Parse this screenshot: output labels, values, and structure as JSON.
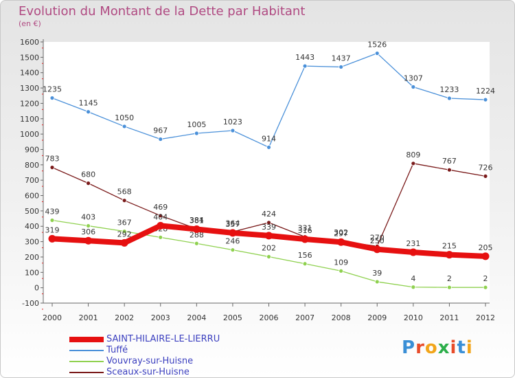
{
  "title": "Evolution du Montant de la Dette par Habitant",
  "subtitle": "(en €)",
  "logo_text": "Proxiti",
  "chart_data": {
    "type": "line",
    "title": "Evolution du Montant de la Dette par Habitant",
    "subtitle": "(en €)",
    "xlabel": "",
    "ylabel": "",
    "x": [
      2000,
      2001,
      2002,
      2003,
      2004,
      2005,
      2006,
      2007,
      2008,
      2009,
      2010,
      2011,
      2012
    ],
    "ylim": [
      -100,
      1600
    ],
    "ytick_step": 100,
    "grid": false,
    "legend_position": "bottom-left",
    "series": [
      {
        "name": "Tuffé",
        "color": "#4a90d9",
        "values": [
          1235,
          1145,
          1050,
          967,
          1005,
          1023,
          914,
          1443,
          1437,
          1526,
          1307,
          1233,
          1224
        ]
      },
      {
        "name": "Vouvray-sur-Huisne",
        "color": "#8fd14f",
        "values": [
          439,
          403,
          367,
          328,
          288,
          246,
          202,
          156,
          109,
          39,
          4,
          2,
          2
        ]
      },
      {
        "name": "Sceaux-sur-Huisne",
        "color": "#7a1a1a",
        "values": [
          783,
          680,
          568,
          469,
          384,
          364,
          424,
          331,
          302,
          270,
          809,
          767,
          726
        ]
      },
      {
        "name": "SAINT-HILAIRE-LE-LIERRU",
        "color": "#e61010",
        "values": [
          319,
          306,
          292,
          404,
          381,
          357,
          339,
          316,
          297,
          250,
          231,
          215,
          205
        ]
      }
    ]
  },
  "legend_order": [
    {
      "name": "SAINT-HILAIRE-LE-LIERRU",
      "color": "#e61010",
      "thickness": 8
    },
    {
      "name": "Tuffé",
      "color": "#4a90d9",
      "thickness": 2
    },
    {
      "name": "Vouvray-sur-Huisne",
      "color": "#8fd14f",
      "thickness": 2
    },
    {
      "name": "Sceaux-sur-Huisne",
      "color": "#7a1a1a",
      "thickness": 2
    }
  ]
}
